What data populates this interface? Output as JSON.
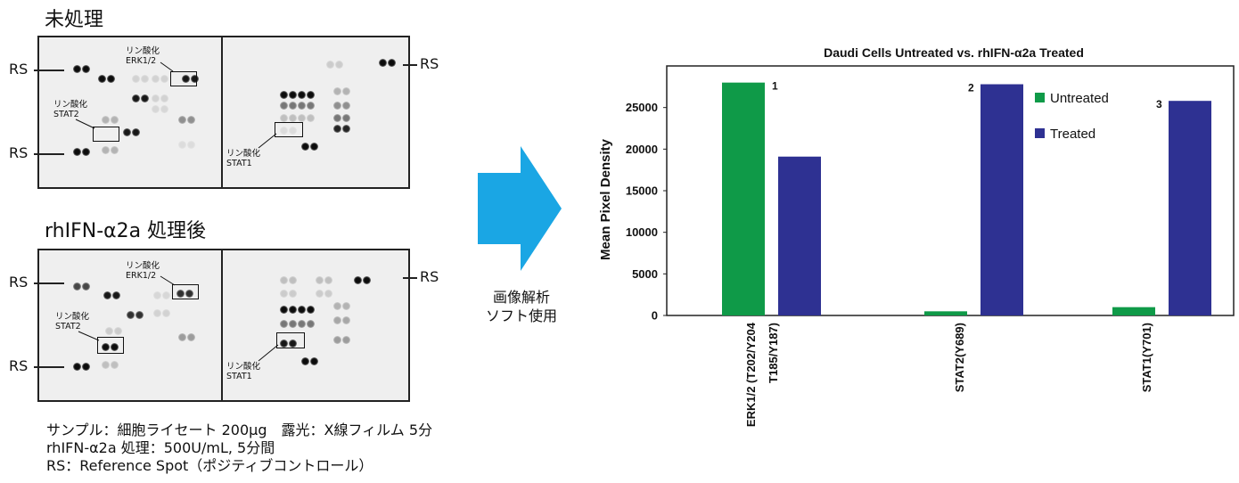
{
  "panels": {
    "untreated_title": "未処理",
    "treated_title": "rhIFN-α2a 処理後",
    "rs_label": "RS",
    "phospho_erk": [
      "リン酸化",
      "ERK1/2"
    ],
    "phospho_stat2": [
      "リン酸化",
      "STAT2"
    ],
    "phospho_stat1": [
      "リン酸化",
      "STAT1"
    ]
  },
  "arrow": {
    "line1": "画像解析",
    "line2": "ソフト使用",
    "color": "#1aa6e4"
  },
  "footnote": {
    "line1": "サンプル：細胞ライセート 200μg　露光：X線フィルム 5分",
    "line2": "rhIFN-α2a 処理：500U/mL, 5分間",
    "line3": "RS：Reference Spot（ポジティブコントロール）"
  },
  "chart_data": {
    "type": "bar",
    "title": "Daudi Cells Untreated vs. rhIFN-α2a Treated",
    "ylabel": "Mean Pixel Density",
    "xlabel": "",
    "ylim": [
      0,
      30000
    ],
    "yticks": [
      0,
      5000,
      10000,
      15000,
      20000,
      25000
    ],
    "categories": [
      "ERK1/2 (T202/Y204\nT185/Y187)",
      "STAT2(Y689)",
      "STAT1(Y701)"
    ],
    "category_labels": [
      [
        "ERK1/2 (T202/Y204",
        "T185/Y187)"
      ],
      [
        "STAT2(Y689)"
      ],
      [
        "STAT1(Y701)"
      ]
    ],
    "series": [
      {
        "name": "Untreated",
        "color": "#0f9a48",
        "values": [
          28000,
          500,
          1000
        ]
      },
      {
        "name": "Treated",
        "color": "#2e3192",
        "values": [
          19100,
          27800,
          25800
        ]
      }
    ],
    "annotations": [
      {
        "text": "1",
        "category": 0,
        "series": 0
      },
      {
        "text": "2",
        "category": 1,
        "series": 1
      },
      {
        "text": "3",
        "category": 2,
        "series": 1
      }
    ],
    "legend_position": "top-right",
    "grid": false
  }
}
